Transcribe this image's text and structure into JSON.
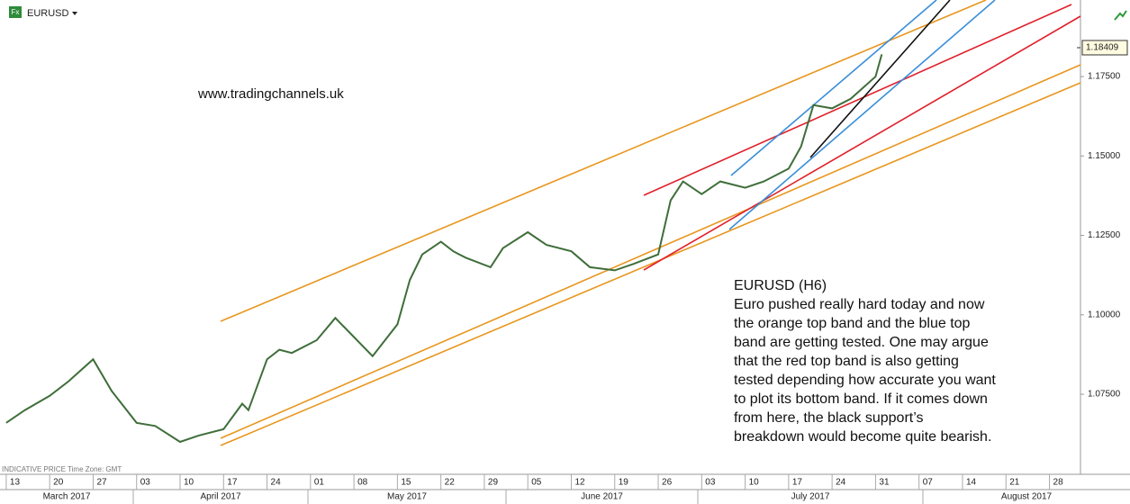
{
  "header": {
    "symbol": "EURUSD",
    "logo": "Fx"
  },
  "chart_data": {
    "type": "line",
    "title": "EURUSD",
    "website": "www.tradingchannels.uk",
    "footer": "INDICATIVE PRICE   Time Zone: GMT",
    "annotation": [
      "EURUSD (H6)",
      "Euro pushed really hard today and now",
      "the orange top band and the blue top",
      "band are getting tested. One may argue",
      "that the red top band is also getting",
      "tested depending how accurate you want",
      "to plot its bottom band. If it comes down",
      "from here, the black support’s",
      "breakdown would become quite bearish."
    ],
    "x": [
      "2017-03-13",
      "2017-03-16",
      "2017-03-20",
      "2017-03-23",
      "2017-03-27",
      "2017-03-30",
      "2017-04-03",
      "2017-04-06",
      "2017-04-10",
      "2017-04-13",
      "2017-04-17",
      "2017-04-20",
      "2017-04-21",
      "2017-04-24",
      "2017-04-26",
      "2017-04-28",
      "2017-05-02",
      "2017-05-05",
      "2017-05-08",
      "2017-05-11",
      "2017-05-15",
      "2017-05-17",
      "2017-05-19",
      "2017-05-22",
      "2017-05-24",
      "2017-05-26",
      "2017-05-30",
      "2017-06-01",
      "2017-06-05",
      "2017-06-08",
      "2017-06-12",
      "2017-06-15",
      "2017-06-19",
      "2017-06-22",
      "2017-06-26",
      "2017-06-28",
      "2017-06-30",
      "2017-07-03",
      "2017-07-06",
      "2017-07-10",
      "2017-07-13",
      "2017-07-17",
      "2017-07-19",
      "2017-07-21",
      "2017-07-24",
      "2017-07-27",
      "2017-07-31",
      "2017-08-01"
    ],
    "series": [
      {
        "name": "EURUSD",
        "color": "#3f6e3a",
        "values": [
          1.066,
          1.07,
          1.0745,
          1.079,
          1.086,
          1.076,
          1.066,
          1.065,
          1.06,
          1.062,
          1.064,
          1.072,
          1.07,
          1.086,
          1.089,
          1.088,
          1.092,
          1.099,
          1.093,
          1.087,
          1.097,
          1.111,
          1.119,
          1.123,
          1.12,
          1.118,
          1.115,
          1.121,
          1.126,
          1.122,
          1.12,
          1.115,
          1.114,
          1.116,
          1.119,
          1.136,
          1.142,
          1.138,
          1.142,
          1.14,
          1.142,
          1.146,
          1.153,
          1.166,
          1.165,
          1.168,
          1.175,
          1.182
        ]
      }
    ],
    "current_price": 1.18409,
    "xlim": [
      "2017-03-12",
      "2017-09-02"
    ],
    "ylim": [
      1.0498,
      1.1991
    ],
    "yticks": [
      {
        "value": 1.075,
        "label": "1.07500"
      },
      {
        "value": 1.1,
        "label": "1.10000"
      },
      {
        "value": 1.125,
        "label": "1.12500"
      },
      {
        "value": 1.15,
        "label": "1.15000"
      },
      {
        "value": 1.175,
        "label": "1.17500"
      }
    ],
    "xticks": [
      {
        "value": "2017-03-13",
        "label": "13"
      },
      {
        "value": "2017-03-20",
        "label": "20"
      },
      {
        "value": "2017-03-27",
        "label": "27"
      },
      {
        "value": "2017-04-03",
        "label": "03"
      },
      {
        "value": "2017-04-10",
        "label": "10"
      },
      {
        "value": "2017-04-17",
        "label": "17"
      },
      {
        "value": "2017-04-24",
        "label": "24"
      },
      {
        "value": "2017-05-01",
        "label": "01"
      },
      {
        "value": "2017-05-08",
        "label": "08"
      },
      {
        "value": "2017-05-15",
        "label": "15"
      },
      {
        "value": "2017-05-22",
        "label": "22"
      },
      {
        "value": "2017-05-29",
        "label": "29"
      },
      {
        "value": "2017-06-05",
        "label": "05"
      },
      {
        "value": "2017-06-12",
        "label": "12"
      },
      {
        "value": "2017-06-19",
        "label": "19"
      },
      {
        "value": "2017-06-26",
        "label": "26"
      },
      {
        "value": "2017-07-03",
        "label": "03"
      },
      {
        "value": "2017-07-10",
        "label": "10"
      },
      {
        "value": "2017-07-17",
        "label": "17"
      },
      {
        "value": "2017-07-24",
        "label": "24"
      },
      {
        "value": "2017-07-31",
        "label": "31"
      },
      {
        "value": "2017-08-07",
        "label": "07"
      },
      {
        "value": "2017-08-14",
        "label": "14"
      },
      {
        "value": "2017-08-21",
        "label": "21"
      },
      {
        "value": "2017-08-28",
        "label": "28"
      }
    ],
    "months": [
      "March 2017",
      "April 2017",
      "May 2017",
      "June 2017",
      "July 2017",
      "August 2017"
    ]
  }
}
